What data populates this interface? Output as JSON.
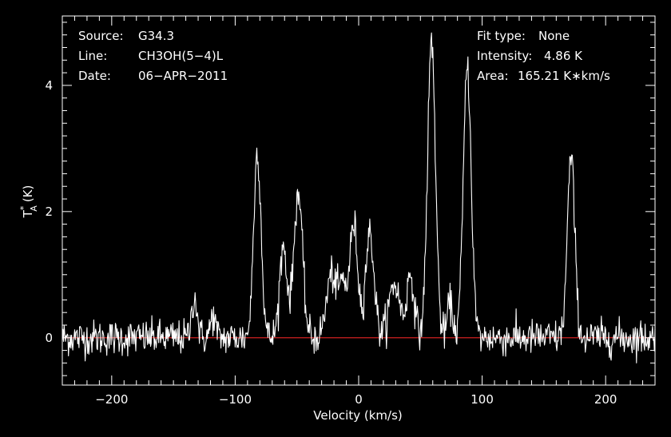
{
  "chart_data": {
    "type": "line",
    "xlabel": "Velocity (km/s)",
    "ylabel": "T",
    "ylabel_sup": "*",
    "ylabel_sub": "A",
    "ylabel_unit": "(K)",
    "xlim": [
      -240,
      240
    ],
    "ylim": [
      -0.75,
      5.1
    ],
    "xticks": [
      -200,
      -100,
      0,
      100,
      200
    ],
    "xtick_labels": [
      "−200",
      "−100",
      "0",
      "100",
      "200"
    ],
    "yticks": [
      0,
      2,
      4
    ],
    "ytick_labels": [
      "0",
      "2",
      "4"
    ],
    "grid": false,
    "noise_rms": 0.14,
    "baseline": {
      "y": 0,
      "color": "#d02020"
    },
    "line_color": "#ffffff",
    "lines": [
      {
        "center": -133,
        "amp": 0.65,
        "sigma": 2.2
      },
      {
        "center": -118,
        "amp": 0.35,
        "sigma": 2.0
      },
      {
        "center": -82,
        "amp": 2.95,
        "sigma": 3.0
      },
      {
        "center": -61,
        "amp": 1.45,
        "sigma": 3.0
      },
      {
        "center": -49,
        "amp": 2.3,
        "sigma": 3.5
      },
      {
        "center": -22,
        "amp": 1.0,
        "sigma": 4.0
      },
      {
        "center": -4,
        "amp": 1.8,
        "sigma": 3.3
      },
      {
        "center": -13,
        "amp": 0.8,
        "sigma": 3.0
      },
      {
        "center": 9,
        "amp": 1.65,
        "sigma": 3.5
      },
      {
        "center": 29,
        "amp": 0.85,
        "sigma": 4.5
      },
      {
        "center": 42,
        "amp": 1.0,
        "sigma": 3.0
      },
      {
        "center": 59,
        "amp": 4.7,
        "sigma": 3.2
      },
      {
        "center": 74,
        "amp": 0.55,
        "sigma": 2.2
      },
      {
        "center": 88,
        "amp": 4.3,
        "sigma": 3.2
      },
      {
        "center": 172,
        "amp": 2.85,
        "sigma": 3.0
      }
    ]
  },
  "info": {
    "source_label": "Source:",
    "source_value": "G34.3",
    "line_label": "Line:",
    "line_value": "CH3OH(5−4)L",
    "date_label": "Date:",
    "date_value": "06−APR−2011",
    "fit_label": "Fit type:",
    "fit_value": "None",
    "intensity_label": "Intensity:",
    "intensity_value": "4.86 K",
    "area_label": "Area:",
    "area_value": "165.21 K∗km/s"
  }
}
